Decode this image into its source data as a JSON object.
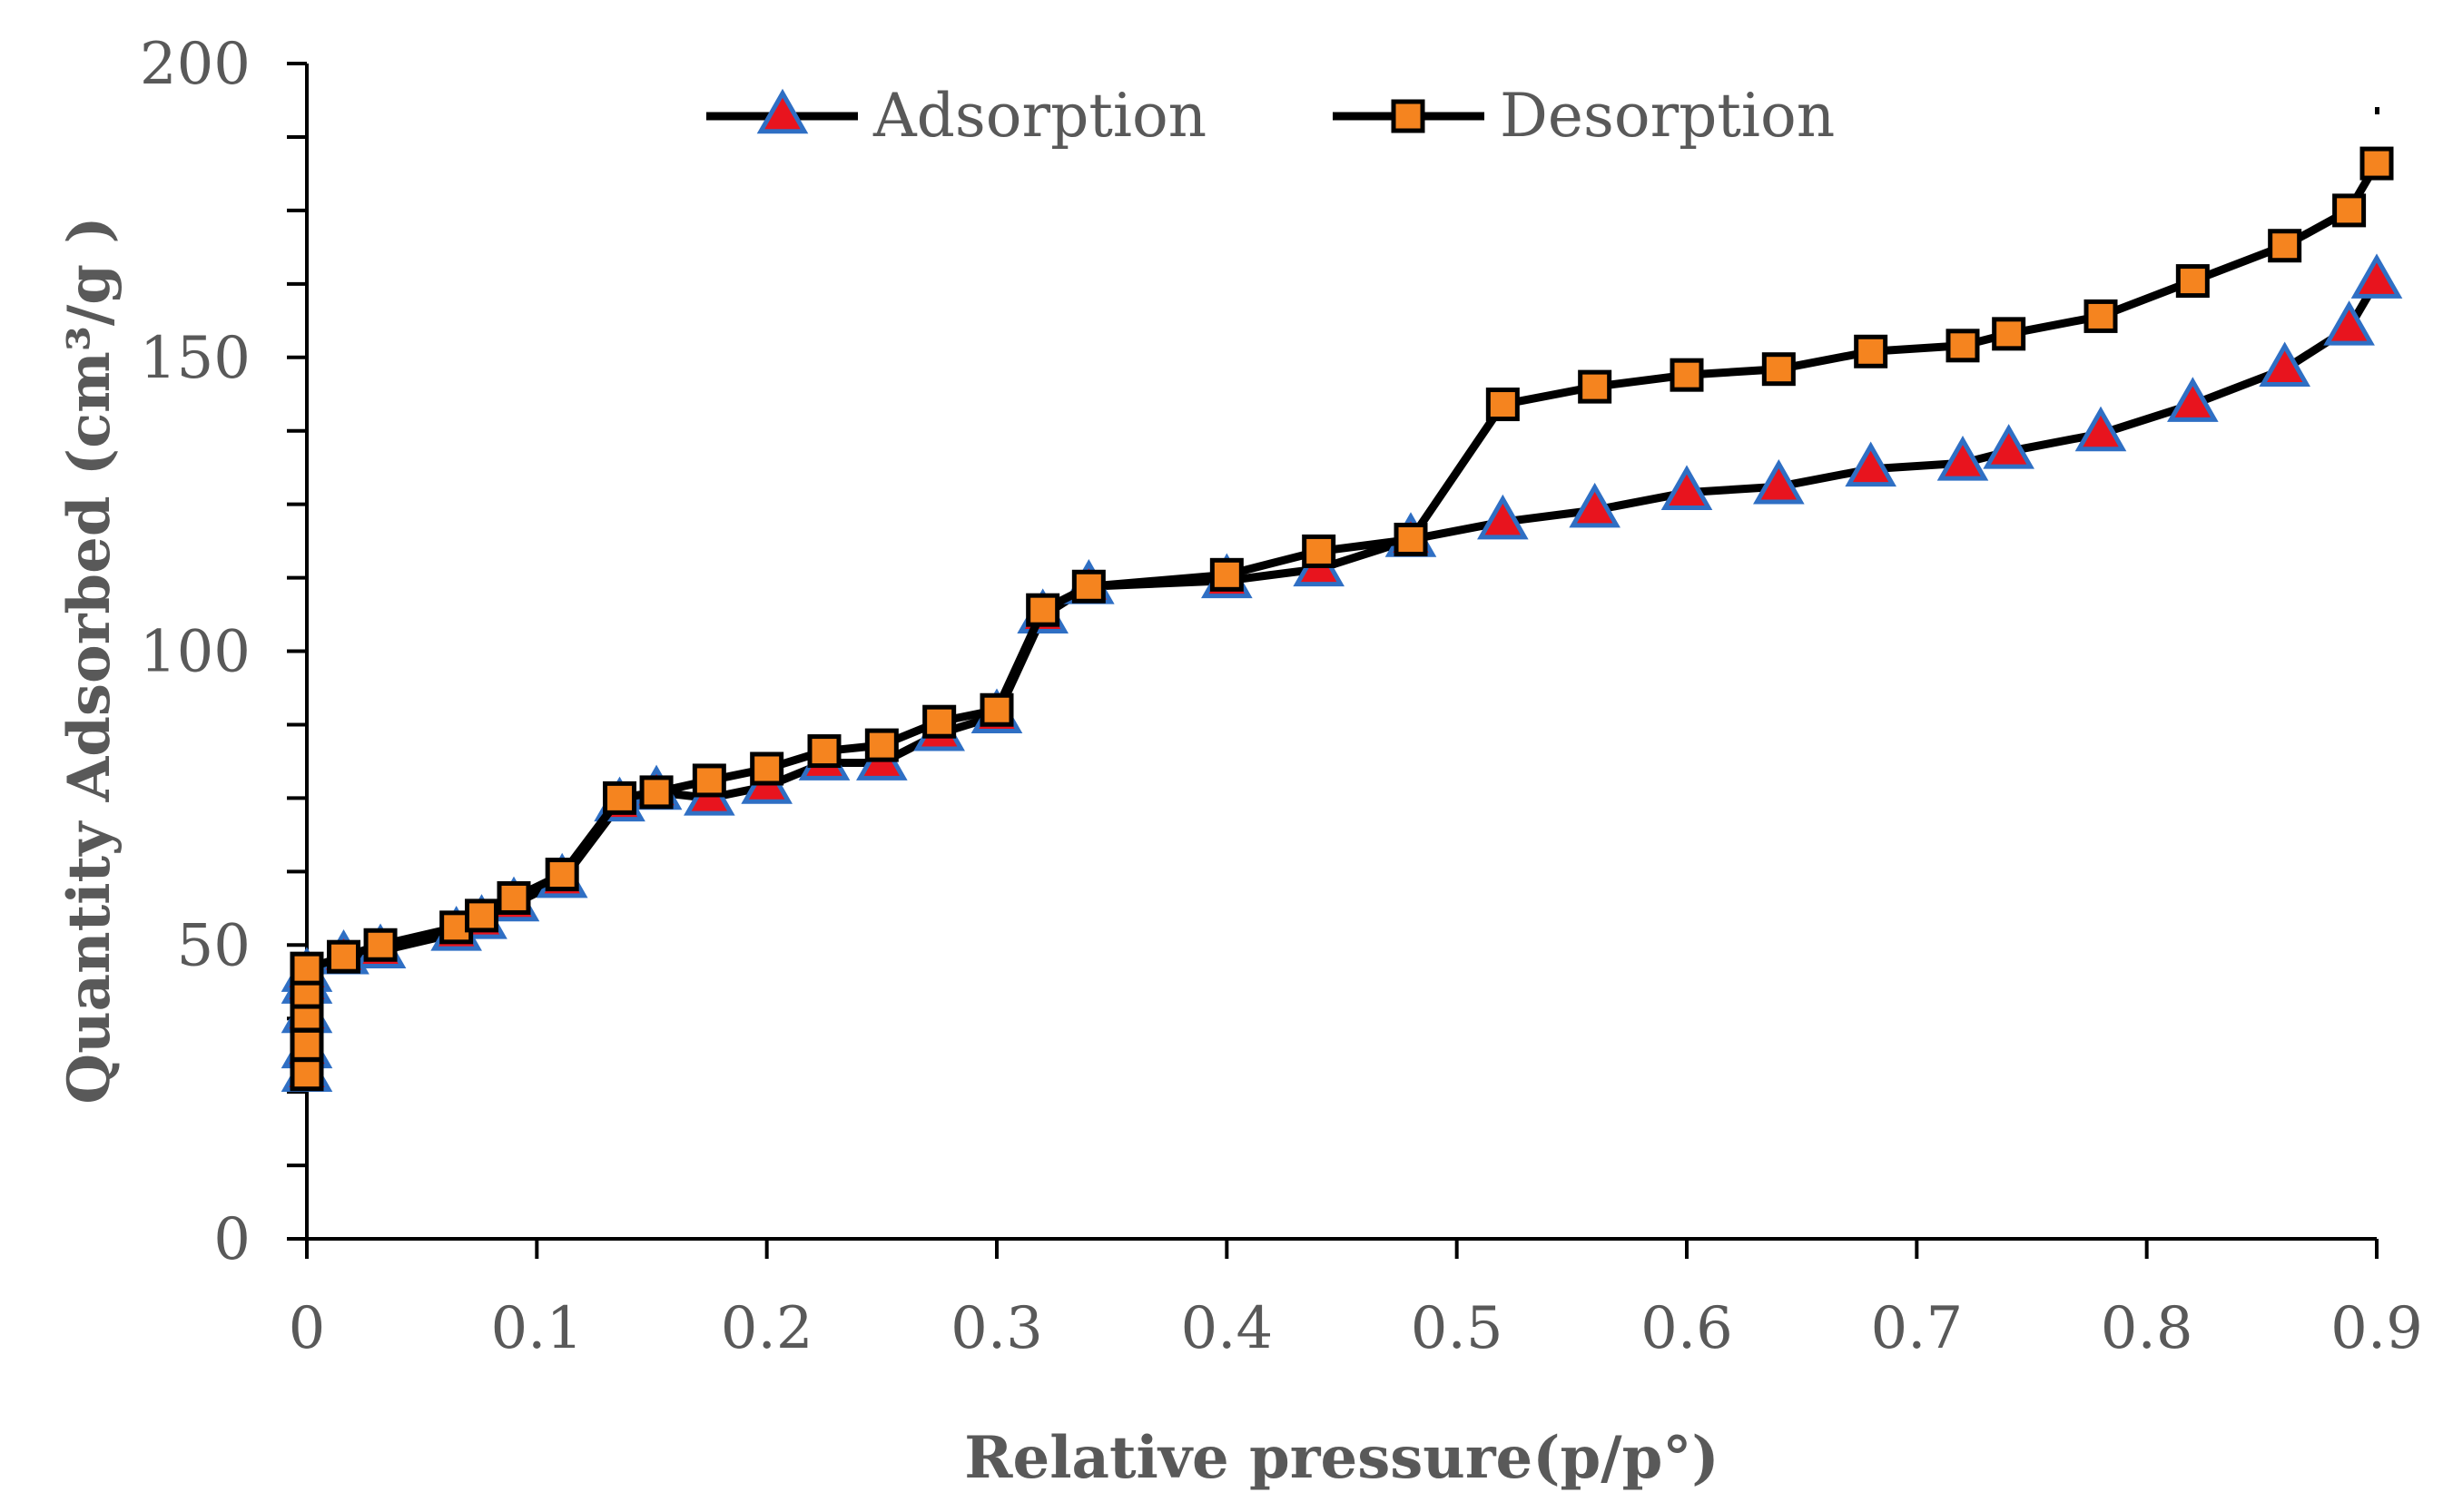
{
  "chart_data": {
    "type": "line",
    "title": "",
    "xlabel": "Relative pressure(p/p°)",
    "ylabel": "Quantity Adsorbed (cm³/g )",
    "xlim": [
      0,
      0.9
    ],
    "ylim": [
      0,
      200
    ],
    "x_ticks": [
      "0",
      "0.1",
      "0.2",
      "0.3",
      "0.4",
      "0.5",
      "0.6",
      "0.7",
      "0.8",
      "0.9"
    ],
    "y_ticks": [
      "0",
      "50",
      "100",
      "150",
      "200"
    ],
    "grid": false,
    "legend_position": "top",
    "series": [
      {
        "name": "Adsorption",
        "marker": "triangle",
        "marker_fill": "#e8141e",
        "marker_edge": "#2f6fc4",
        "line_color": "#000000",
        "x": [
          0.0,
          0.0,
          0.0,
          0.0,
          0.0,
          0.016,
          0.032,
          0.065,
          0.076,
          0.09,
          0.111,
          0.136,
          0.152,
          0.175,
          0.2,
          0.225,
          0.25,
          0.275,
          0.3,
          0.32,
          0.34,
          0.4,
          0.44,
          0.48,
          0.52,
          0.56,
          0.6,
          0.64,
          0.68,
          0.72,
          0.74,
          0.78,
          0.82,
          0.86,
          0.888,
          0.9
        ],
        "y": [
          28,
          32,
          38,
          43,
          45,
          48,
          49,
          52,
          54,
          57,
          61,
          74,
          76,
          75,
          77,
          81,
          81,
          86,
          89,
          106,
          111,
          112,
          114,
          119,
          122,
          124,
          127,
          128,
          131,
          132,
          134,
          137,
          142,
          148,
          155,
          163
        ]
      },
      {
        "name": "Desorption",
        "marker": "square",
        "marker_fill": "#f5841f",
        "marker_edge": "#000000",
        "line_color": "#000000",
        "x": [
          0.0,
          0.0,
          0.0,
          0.0,
          0.0,
          0.016,
          0.032,
          0.065,
          0.076,
          0.09,
          0.111,
          0.136,
          0.152,
          0.175,
          0.2,
          0.225,
          0.25,
          0.275,
          0.3,
          0.32,
          0.34,
          0.4,
          0.44,
          0.48,
          0.52,
          0.56,
          0.6,
          0.64,
          0.68,
          0.72,
          0.74,
          0.78,
          0.82,
          0.86,
          0.888,
          0.9
        ],
        "y": [
          28,
          33,
          38,
          42,
          46,
          48,
          50,
          53,
          55,
          58,
          62,
          75,
          76,
          78,
          80,
          83,
          84,
          88,
          90,
          107,
          111,
          113,
          117,
          119,
          142,
          145,
          147,
          148,
          151,
          152,
          154,
          157,
          163,
          169,
          175,
          183
        ]
      }
    ]
  }
}
